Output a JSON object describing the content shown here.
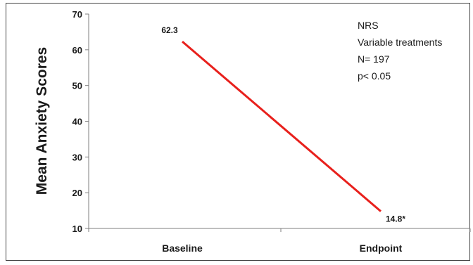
{
  "chart_data": {
    "type": "line",
    "title": "",
    "categories": [
      "Baseline",
      "Endpoint"
    ],
    "series": [
      {
        "name": "",
        "values": [
          62.3,
          14.8
        ],
        "data_labels": [
          "62.3",
          "14.8*"
        ],
        "color": "#e8201c"
      }
    ],
    "xlabel": "",
    "ylabel": "Mean Anxiety Scores",
    "ylim": [
      10,
      70
    ],
    "yticks": [
      10,
      20,
      30,
      40,
      50,
      60,
      70
    ],
    "grid": false,
    "annotations": [
      "NRS",
      "Variable treatments",
      "N= 197",
      "p< 0.05"
    ]
  }
}
